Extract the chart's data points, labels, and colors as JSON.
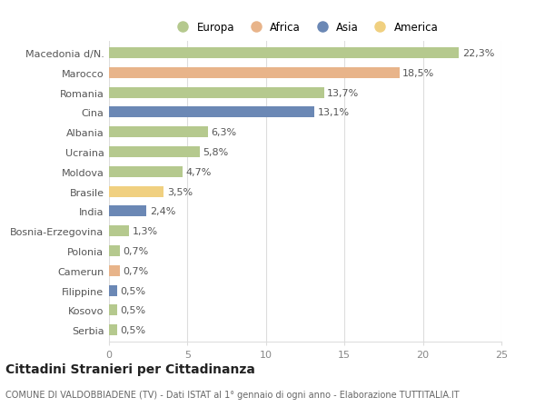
{
  "categories": [
    "Macedonia d/N.",
    "Marocco",
    "Romania",
    "Cina",
    "Albania",
    "Ucraina",
    "Moldova",
    "Brasile",
    "India",
    "Bosnia-Erzegovina",
    "Polonia",
    "Camerun",
    "Filippine",
    "Kosovo",
    "Serbia"
  ],
  "values": [
    22.3,
    18.5,
    13.7,
    13.1,
    6.3,
    5.8,
    4.7,
    3.5,
    2.4,
    1.3,
    0.7,
    0.7,
    0.5,
    0.5,
    0.5
  ],
  "labels": [
    "22,3%",
    "18,5%",
    "13,7%",
    "13,1%",
    "6,3%",
    "5,8%",
    "4,7%",
    "3,5%",
    "2,4%",
    "1,3%",
    "0,7%",
    "0,7%",
    "0,5%",
    "0,5%",
    "0,5%"
  ],
  "continents": [
    "Europa",
    "Africa",
    "Europa",
    "Asia",
    "Europa",
    "Europa",
    "Europa",
    "America",
    "Asia",
    "Europa",
    "Europa",
    "Africa",
    "Asia",
    "Europa",
    "Europa"
  ],
  "continent_colors": {
    "Europa": "#b5c98e",
    "Africa": "#e8b48a",
    "Asia": "#6b88b5",
    "America": "#f0d080"
  },
  "legend_order": [
    "Europa",
    "Africa",
    "Asia",
    "America"
  ],
  "legend_colors": [
    "#b5c98e",
    "#e8b48a",
    "#6b88b5",
    "#f0d080"
  ],
  "xlim": [
    0,
    25
  ],
  "xticks": [
    0,
    5,
    10,
    15,
    20,
    25
  ],
  "title": "Cittadini Stranieri per Cittadinanza",
  "subtitle": "COMUNE DI VALDOBBIADENE (TV) - Dati ISTAT al 1° gennaio di ogni anno - Elaborazione TUTTITALIA.IT",
  "background_color": "#ffffff",
  "grid_color": "#dddddd",
  "bar_height": 0.55,
  "label_fontsize": 8.0,
  "ytick_fontsize": 8.0,
  "title_fontsize": 10,
  "subtitle_fontsize": 7.0
}
